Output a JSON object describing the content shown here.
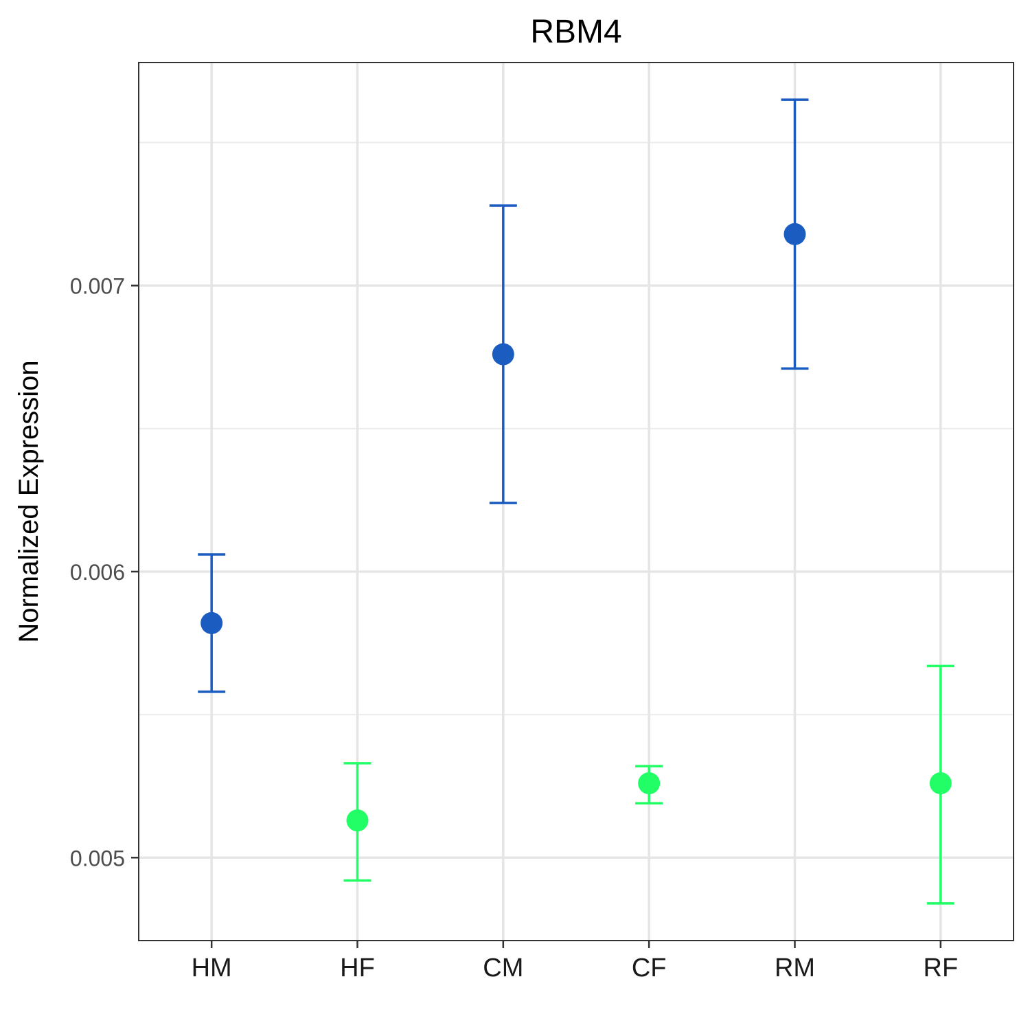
{
  "chart_data": {
    "type": "scatter",
    "title": "RBM4",
    "xlabel": "",
    "ylabel": "Normalized Expression",
    "categories": [
      "HM",
      "HF",
      "CM",
      "CF",
      "RM",
      "RF"
    ],
    "ylim": [
      0.00471,
      0.00778
    ],
    "yticks": [
      0.005,
      0.006,
      0.007
    ],
    "ytick_labels": [
      "0.005",
      "0.006",
      "0.007"
    ],
    "grid": true,
    "legend": "none",
    "colors": {
      "male": "#1a5cbf",
      "female": "#22ff66"
    },
    "points": [
      {
        "category": "HM",
        "value": 0.00582,
        "lower": 0.00558,
        "upper": 0.00606,
        "group": "male"
      },
      {
        "category": "HF",
        "value": 0.00513,
        "lower": 0.00492,
        "upper": 0.00533,
        "group": "female"
      },
      {
        "category": "CM",
        "value": 0.00676,
        "lower": 0.00624,
        "upper": 0.00728,
        "group": "male"
      },
      {
        "category": "CF",
        "value": 0.00526,
        "lower": 0.00519,
        "upper": 0.00532,
        "group": "female"
      },
      {
        "category": "RM",
        "value": 0.00718,
        "lower": 0.00671,
        "upper": 0.00765,
        "group": "male"
      },
      {
        "category": "RF",
        "value": 0.00526,
        "lower": 0.00484,
        "upper": 0.00567,
        "group": "female"
      }
    ]
  }
}
